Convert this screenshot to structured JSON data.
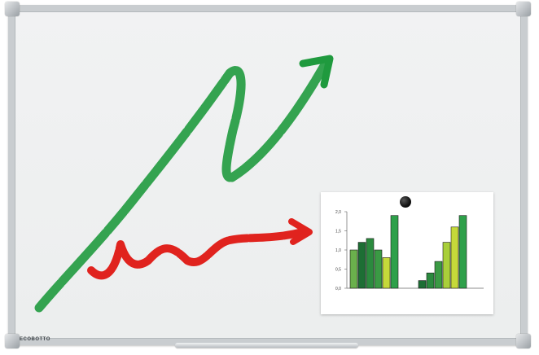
{
  "brand": {
    "text": "ECOBOTTO"
  },
  "colors": {
    "green_stroke": "#1f9a3e",
    "red_stroke": "#e0231e",
    "frame": "#c9cdd0",
    "board": "#eef0f0"
  },
  "chart_data": {
    "type": "bar",
    "y_ticks": [
      "2,0",
      "1,5",
      "1,0",
      "0,5",
      "0,0"
    ],
    "ylim": [
      0,
      2.0
    ],
    "groups": [
      {
        "values": [
          1.0,
          1.2,
          1.3,
          1.0,
          0.8,
          1.9
        ],
        "colors": [
          "#6ab04c",
          "#1d6e34",
          "#2b8a3e",
          "#3a9a44",
          "#c5d93a",
          "#2ea04a"
        ]
      },
      {
        "values": [
          0.2,
          0.4,
          0.7,
          1.2,
          1.6,
          1.9
        ],
        "colors": [
          "#1d6e34",
          "#2b8a3e",
          "#3a9a44",
          "#a9cf3a",
          "#c5d93a",
          "#2ea04a"
        ]
      }
    ]
  }
}
